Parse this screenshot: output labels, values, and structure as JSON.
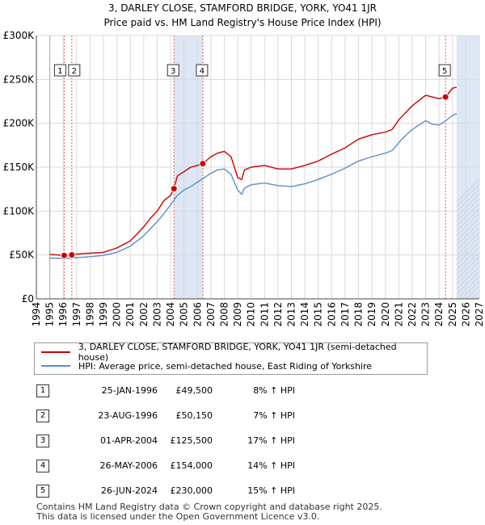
{
  "title_line1": "3, DARLEY CLOSE, STAMFORD BRIDGE, YORK, YO41 1JR",
  "title_line2": "Price paid vs. HM Land Registry's House Price Index (HPI)",
  "chart_data": {
    "type": "line",
    "title": "Price paid vs. HM Land Registry's House Price Index (HPI)",
    "xlabel": "",
    "ylabel": "",
    "xlim": [
      1994,
      2027
    ],
    "ylim": [
      0,
      300000
    ],
    "x_ticks": [
      1994,
      1995,
      1996,
      1997,
      1998,
      1999,
      2000,
      2001,
      2002,
      2003,
      2004,
      2005,
      2006,
      2007,
      2008,
      2009,
      2010,
      2011,
      2012,
      2013,
      2014,
      2015,
      2016,
      2017,
      2018,
      2019,
      2020,
      2021,
      2022,
      2023,
      2024,
      2025,
      2026,
      2027
    ],
    "y_ticks": [
      0,
      50000,
      100000,
      150000,
      200000,
      250000,
      300000
    ],
    "y_tick_labels": [
      "£0",
      "£50K",
      "£100K",
      "£150K",
      "£200K",
      "£250K",
      "£300K"
    ],
    "data_range": [
      1995.0,
      2025.3
    ],
    "shaded_spans": [
      [
        2004.25,
        2006.4
      ],
      [
        2025.3,
        2027
      ]
    ],
    "series": [
      {
        "name": "3, DARLEY CLOSE, STAMFORD BRIDGE, YORK, YO41 1JR (semi-detached house)",
        "color": "#cc0000",
        "x": [
          1995.0,
          1996.07,
          1996.64,
          1997,
          1998,
          1999,
          2000,
          2001,
          2002,
          2002.5,
          2003,
          2003.5,
          2004.0,
          2004.25,
          2004.5,
          2005.0,
          2005.5,
          2006.0,
          2006.4,
          2007.0,
          2007.5,
          2008.0,
          2008.5,
          2009.0,
          2009.3,
          2009.5,
          2010.0,
          2011.0,
          2012.0,
          2013.0,
          2014.0,
          2015.0,
          2016.0,
          2017.0,
          2018.0,
          2019.0,
          2020.0,
          2020.5,
          2021.0,
          2021.5,
          2022.0,
          2022.5,
          2023.0,
          2023.5,
          2024.0,
          2024.48,
          2024.8,
          2025.0,
          2025.3
        ],
        "y": [
          50500,
          49500,
          50150,
          51000,
          52000,
          53000,
          58000,
          66000,
          82000,
          92000,
          100000,
          112000,
          118000,
          125500,
          140000,
          145000,
          150000,
          152000,
          154000,
          162000,
          166000,
          168000,
          162000,
          138000,
          136000,
          147000,
          150000,
          152000,
          148000,
          148000,
          152000,
          157000,
          165000,
          172000,
          182000,
          187000,
          190000,
          193000,
          204000,
          212000,
          220000,
          226000,
          232000,
          230000,
          228000,
          230000,
          236000,
          240000,
          241000
        ]
      },
      {
        "name": "HPI: Average price, semi-detached house, East Riding of Yorkshire",
        "color": "#5b8ec9",
        "x": [
          1995.0,
          1996.0,
          1997,
          1998,
          1999,
          2000,
          2001,
          2002,
          2002.5,
          2003,
          2003.5,
          2004.0,
          2004.5,
          2005.0,
          2005.5,
          2006.0,
          2006.5,
          2007.0,
          2007.5,
          2008.0,
          2008.5,
          2009.0,
          2009.3,
          2009.5,
          2010.0,
          2011.0,
          2012.0,
          2013.0,
          2014.0,
          2015.0,
          2016.0,
          2017.0,
          2018.0,
          2019.0,
          2020.0,
          2020.5,
          2021.0,
          2021.5,
          2022.0,
          2022.5,
          2023.0,
          2023.5,
          2024.0,
          2024.5,
          2025.0,
          2025.3
        ],
        "y": [
          46500,
          46000,
          47000,
          48000,
          49500,
          53000,
          60000,
          72000,
          80000,
          88000,
          97000,
          107000,
          118000,
          124000,
          128000,
          133000,
          138000,
          143000,
          147000,
          148000,
          142000,
          124000,
          119000,
          126000,
          130000,
          132000,
          129000,
          128000,
          131000,
          136000,
          142000,
          149000,
          157000,
          162000,
          166000,
          169000,
          178000,
          186000,
          193000,
          198000,
          203000,
          199000,
          198000,
          203000,
          209000,
          211000
        ]
      }
    ],
    "transactions": [
      {
        "num": "1",
        "x": 1996.07,
        "price": 49500
      },
      {
        "num": "2",
        "x": 1996.64,
        "price": 50150
      },
      {
        "num": "3",
        "x": 2004.25,
        "price": 125500
      },
      {
        "num": "4",
        "x": 2006.4,
        "price": 154000
      },
      {
        "num": "5",
        "x": 2024.48,
        "price": 230000
      }
    ],
    "colors": {
      "price_paid": "#cc0000",
      "hpi": "#5b8ec9",
      "shade": "#dde6f5",
      "grid": "#d9d9d9",
      "marker_line": "#e06060"
    }
  },
  "legend": {
    "item1": "3, DARLEY CLOSE, STAMFORD BRIDGE, YORK, YO41 1JR (semi-detached house)",
    "item2": "HPI: Average price, semi-detached house, East Riding of Yorkshire"
  },
  "table": [
    {
      "num": "1",
      "date": "25-JAN-1996",
      "price": "£49,500",
      "hpi": "8% ↑ HPI"
    },
    {
      "num": "2",
      "date": "23-AUG-1996",
      "price": "£50,150",
      "hpi": "7% ↑ HPI"
    },
    {
      "num": "3",
      "date": "01-APR-2004",
      "price": "£125,500",
      "hpi": "17% ↑ HPI"
    },
    {
      "num": "4",
      "date": "26-MAY-2006",
      "price": "£154,000",
      "hpi": "14% ↑ HPI"
    },
    {
      "num": "5",
      "date": "26-JUN-2024",
      "price": "£230,000",
      "hpi": "15% ↑ HPI"
    }
  ],
  "footer_line1": "Contains HM Land Registry data © Crown copyright and database right 2025.",
  "footer_line2": "This data is licensed under the Open Government Licence v3.0."
}
